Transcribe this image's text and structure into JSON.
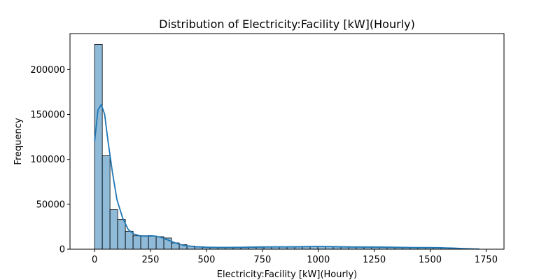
{
  "chart_data": {
    "type": "bar",
    "title": "Distribution of Electricity:Facility [kW](Hourly)",
    "xlabel": "Electricity:Facility [kW](Hourly)",
    "ylabel": "Frequency",
    "xlim": [
      -110,
      1830
    ],
    "ylim": [
      0,
      240000
    ],
    "grid": false,
    "bins": {
      "start": 0,
      "width": 34.4,
      "count": 50
    },
    "counts": [
      228000,
      104000,
      44000,
      33000,
      20000,
      15000,
      15000,
      14500,
      14000,
      12500,
      7000,
      5000,
      3500,
      2500,
      2000,
      2000,
      1800,
      1800,
      1800,
      1800,
      2000,
      2200,
      2500,
      2500,
      2500,
      2500,
      2600,
      2600,
      3000,
      3000,
      3000,
      2800,
      2600,
      2400,
      2400,
      2400,
      2400,
      2200,
      2000,
      1800,
      1600,
      1500,
      1500,
      1600,
      1700,
      1500,
      1000,
      600,
      300,
      150
    ],
    "kde": {
      "x": [
        0,
        15,
        30,
        45,
        60,
        80,
        100,
        125,
        150,
        175,
        200,
        225,
        250,
        275,
        300,
        325,
        350,
        375,
        400,
        450,
        500,
        550,
        600,
        650,
        700,
        750,
        800,
        850,
        900,
        950,
        1000,
        1050,
        1100,
        1150,
        1200,
        1250,
        1300,
        1350,
        1400,
        1450,
        1500,
        1550,
        1600,
        1650,
        1700,
        1720
      ],
      "y": [
        120000,
        155000,
        161000,
        150000,
        120000,
        85000,
        55000,
        35000,
        22000,
        17000,
        15000,
        14500,
        15000,
        14500,
        13000,
        10500,
        8000,
        5800,
        4200,
        2800,
        2200,
        2000,
        2000,
        2100,
        2300,
        2500,
        2600,
        2600,
        2700,
        2900,
        3000,
        2900,
        2700,
        2500,
        2400,
        2400,
        2300,
        2100,
        1900,
        1800,
        1800,
        1600,
        1200,
        700,
        300,
        200
      ]
    },
    "bar_color": "#1f77b4",
    "bar_fill_opacity": 0.5,
    "bar_edge_color": "#000000",
    "kde_color": "#1f77b4",
    "x_ticks": [
      0,
      250,
      500,
      750,
      1000,
      1250,
      1500,
      1750
    ],
    "y_ticks": [
      0,
      50000,
      100000,
      150000,
      200000
    ],
    "x_tick_labels": [
      "0",
      "250",
      "500",
      "750",
      "1000",
      "1250",
      "1500",
      "1750"
    ],
    "y_tick_labels": [
      "0",
      "50000",
      "100000",
      "150000",
      "200000"
    ]
  }
}
